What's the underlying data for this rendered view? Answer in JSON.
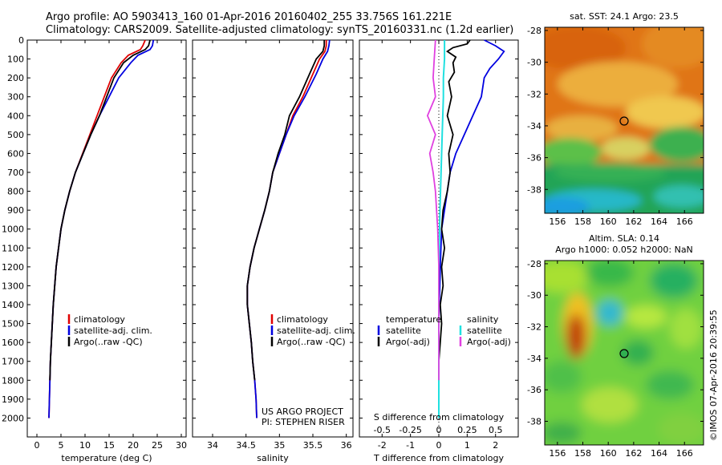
{
  "title": {
    "line1": "Argo profile: AO 5903413_160 01-Apr-2016 20160402_255 33.756S 161.221E",
    "line2": "Climatology: CARS2009. Satellite-adjusted climatology: synTS_20160331.nc (1.2d earlier)"
  },
  "colors": {
    "climatology": "#e00000",
    "satellite": "#0000e0",
    "argo": "#000000",
    "argo_salinity": "#e040e0",
    "satellite_salinity": "#20e0e0"
  },
  "panel_temp": {
    "xlabel": "temperature (deg C)",
    "legend": [
      "climatology",
      "satellite-adj. clim.",
      "Argo(..raw -QC)"
    ]
  },
  "panel_sal": {
    "xlabel": "salinity",
    "legend": [
      "climatology",
      "satellite-adj. clim.",
      "Argo(..raw -QC)"
    ],
    "credit1": "US ARGO PROJECT",
    "credit2": "PI: STEPHEN RISER"
  },
  "panel_diff": {
    "xlabel": "T difference from climatology",
    "xlabel_top": "S difference from climatology",
    "legend_t_head": "temperature",
    "legend_t": [
      "satellite",
      "Argo(-adj)"
    ],
    "legend_s_head": "salinity",
    "legend_s": [
      "satellite",
      "Argo(-adj)"
    ]
  },
  "map_sst": {
    "title": "sat. SST: 24.1  Argo: 23.5"
  },
  "map_sla": {
    "title1": "Altim. SLA: 0.14",
    "title2": "Argo h1000: 0.052 h2000: NaN"
  },
  "footer_vertical": "©IMOS 07-Apr-2016 20:39:55",
  "chart_data": [
    {
      "type": "line",
      "title": "",
      "xlabel": "temperature (deg C)",
      "ylabel": "",
      "xlim": [
        -2,
        31
      ],
      "ylim": [
        2100,
        0
      ],
      "xticks": [
        0,
        5,
        10,
        15,
        20,
        25,
        30
      ],
      "yticks": [
        0,
        100,
        200,
        300,
        400,
        500,
        600,
        700,
        800,
        900,
        1000,
        1100,
        1200,
        1300,
        1400,
        1500,
        1600,
        1700,
        1800,
        1900,
        2000
      ],
      "series": [
        {
          "name": "climatology",
          "points": [
            [
              22.5,
              0
            ],
            [
              22,
              30
            ],
            [
              21.5,
              50
            ],
            [
              19,
              80
            ],
            [
              17.5,
              120
            ],
            [
              15.5,
              200
            ],
            [
              14,
              300
            ],
            [
              12.5,
              400
            ],
            [
              11,
              500
            ],
            [
              9.5,
              600
            ],
            [
              8,
              700
            ],
            [
              6.8,
              800
            ],
            [
              5.8,
              900
            ],
            [
              5,
              1000
            ],
            [
              4.5,
              1100
            ],
            [
              4,
              1200
            ],
            [
              3.7,
              1300
            ],
            [
              3.4,
              1400
            ],
            [
              3.2,
              1500
            ],
            [
              3,
              1600
            ],
            [
              2.8,
              1700
            ],
            [
              2.7,
              1800
            ],
            [
              2.6,
              1900
            ],
            [
              2.5,
              2000
            ]
          ]
        },
        {
          "name": "satellite-adj. clim.",
          "points": [
            [
              24.2,
              0
            ],
            [
              24,
              30
            ],
            [
              23.5,
              50
            ],
            [
              21,
              80
            ],
            [
              19.5,
              120
            ],
            [
              17,
              200
            ],
            [
              15,
              300
            ],
            [
              13,
              400
            ],
            [
              11.2,
              500
            ],
            [
              9.6,
              600
            ],
            [
              8,
              700
            ],
            [
              6.8,
              800
            ],
            [
              5.8,
              900
            ],
            [
              5,
              1000
            ],
            [
              4.5,
              1100
            ],
            [
              4,
              1200
            ],
            [
              3.7,
              1300
            ],
            [
              3.4,
              1400
            ],
            [
              3.2,
              1500
            ],
            [
              3,
              1600
            ],
            [
              2.8,
              1700
            ],
            [
              2.7,
              1800
            ],
            [
              2.6,
              1900
            ],
            [
              2.5,
              2000
            ]
          ]
        },
        {
          "name": "Argo(..raw -QC)",
          "points": [
            [
              23.5,
              0
            ],
            [
              23.2,
              30
            ],
            [
              22.5,
              50
            ],
            [
              20,
              80
            ],
            [
              18,
              120
            ],
            [
              16,
              200
            ],
            [
              14.5,
              300
            ],
            [
              13,
              400
            ],
            [
              11.2,
              500
            ],
            [
              9.6,
              600
            ],
            [
              8,
              700
            ],
            [
              6.8,
              800
            ],
            [
              5.8,
              900
            ],
            [
              5,
              1000
            ],
            [
              4.5,
              1100
            ],
            [
              4,
              1200
            ],
            [
              3.7,
              1300
            ],
            [
              3.4,
              1400
            ],
            [
              3.2,
              1500
            ],
            [
              3,
              1600
            ],
            [
              2.8,
              1700
            ],
            [
              2.7,
              1800
            ]
          ]
        }
      ]
    },
    {
      "type": "line",
      "title": "",
      "xlabel": "salinity",
      "ylabel": "",
      "xlim": [
        33.7,
        36.1
      ],
      "ylim": [
        2100,
        0
      ],
      "xticks": [
        34,
        34.5,
        35,
        35.5,
        36
      ],
      "series": [
        {
          "name": "climatology",
          "points": [
            [
              35.7,
              0
            ],
            [
              35.7,
              30
            ],
            [
              35.68,
              60
            ],
            [
              35.6,
              100
            ],
            [
              35.5,
              180
            ],
            [
              35.35,
              300
            ],
            [
              35.2,
              400
            ],
            [
              35.1,
              500
            ],
            [
              35,
              600
            ],
            [
              34.9,
              700
            ],
            [
              34.85,
              800
            ],
            [
              34.78,
              900
            ],
            [
              34.7,
              1000
            ],
            [
              34.62,
              1100
            ],
            [
              34.56,
              1200
            ],
            [
              34.52,
              1300
            ],
            [
              34.52,
              1400
            ],
            [
              34.55,
              1500
            ],
            [
              34.58,
              1600
            ],
            [
              34.6,
              1700
            ],
            [
              34.63,
              1800
            ],
            [
              34.65,
              1900
            ],
            [
              34.66,
              2000
            ]
          ]
        },
        {
          "name": "satellite-adj. clim.",
          "points": [
            [
              35.75,
              0
            ],
            [
              35.74,
              30
            ],
            [
              35.72,
              60
            ],
            [
              35.65,
              100
            ],
            [
              35.55,
              180
            ],
            [
              35.38,
              300
            ],
            [
              35.22,
              400
            ],
            [
              35.1,
              500
            ],
            [
              35,
              600
            ],
            [
              34.9,
              700
            ],
            [
              34.85,
              800
            ],
            [
              34.78,
              900
            ],
            [
              34.7,
              1000
            ],
            [
              34.62,
              1100
            ],
            [
              34.56,
              1200
            ],
            [
              34.52,
              1300
            ],
            [
              34.52,
              1400
            ],
            [
              34.55,
              1500
            ],
            [
              34.58,
              1600
            ],
            [
              34.6,
              1700
            ],
            [
              34.63,
              1800
            ],
            [
              34.65,
              1900
            ],
            [
              34.66,
              2000
            ]
          ]
        },
        {
          "name": "Argo(..raw -QC)",
          "points": [
            [
              35.67,
              0
            ],
            [
              35.67,
              30
            ],
            [
              35.65,
              60
            ],
            [
              35.55,
              100
            ],
            [
              35.45,
              180
            ],
            [
              35.3,
              300
            ],
            [
              35.15,
              400
            ],
            [
              35.08,
              500
            ],
            [
              34.98,
              600
            ],
            [
              34.9,
              700
            ],
            [
              34.85,
              800
            ],
            [
              34.78,
              900
            ],
            [
              34.7,
              1000
            ],
            [
              34.62,
              1100
            ],
            [
              34.56,
              1200
            ],
            [
              34.52,
              1300
            ],
            [
              34.52,
              1400
            ],
            [
              34.55,
              1500
            ],
            [
              34.58,
              1600
            ],
            [
              34.6,
              1700
            ],
            [
              34.63,
              1800
            ]
          ]
        }
      ]
    },
    {
      "type": "line",
      "title": "",
      "xlabel": "T difference from climatology",
      "xlabel_top": "S difference from climatology",
      "ylabel": "",
      "xlim": [
        -2.8,
        2.8
      ],
      "ylim": [
        2100,
        0
      ],
      "xticks_T": [
        -2,
        -1,
        0,
        1,
        2
      ],
      "xticks_S": [
        -0.5,
        -0.25,
        0,
        0.25,
        0.5
      ],
      "series": [
        {
          "name": "satellite (temperature)",
          "points": [
            [
              1.6,
              0
            ],
            [
              2,
              30
            ],
            [
              2.3,
              60
            ],
            [
              2.1,
              100
            ],
            [
              1.8,
              150
            ],
            [
              1.6,
              200
            ],
            [
              1.5,
              300
            ],
            [
              1.2,
              400
            ],
            [
              0.9,
              500
            ],
            [
              0.6,
              600
            ],
            [
              0.4,
              700
            ],
            [
              0.3,
              800
            ],
            [
              0.2,
              900
            ],
            [
              0.1,
              1000
            ],
            [
              0.05,
              1200
            ],
            [
              0,
              1500
            ],
            [
              0,
              1800
            ],
            [
              0,
              2000
            ]
          ]
        },
        {
          "name": "Argo(-adj) (temperature)",
          "points": [
            [
              1.1,
              0
            ],
            [
              1,
              20
            ],
            [
              0.5,
              40
            ],
            [
              0.3,
              60
            ],
            [
              0.6,
              90
            ],
            [
              0.5,
              120
            ],
            [
              0.55,
              170
            ],
            [
              0.35,
              220
            ],
            [
              0.45,
              300
            ],
            [
              0.3,
              400
            ],
            [
              0.5,
              500
            ],
            [
              0.35,
              600
            ],
            [
              0.4,
              700
            ],
            [
              0.3,
              800
            ],
            [
              0.15,
              900
            ],
            [
              0.1,
              1000
            ],
            [
              0.2,
              1100
            ],
            [
              0.1,
              1200
            ],
            [
              0.15,
              1300
            ],
            [
              0.05,
              1400
            ],
            [
              0.1,
              1500
            ],
            [
              0.05,
              1600
            ],
            [
              0,
              1700
            ],
            [
              0,
              1800
            ]
          ]
        },
        {
          "name": "satellite (salinity)",
          "points": [
            [
              0.05,
              0
            ],
            [
              0.05,
              100
            ],
            [
              0.04,
              200
            ],
            [
              0.04,
              300
            ],
            [
              0.03,
              500
            ],
            [
              0.02,
              700
            ],
            [
              0.01,
              900
            ],
            [
              0,
              1200
            ],
            [
              0,
              1500
            ],
            [
              0,
              1800
            ],
            [
              0,
              2000
            ]
          ]
        },
        {
          "name": "Argo(-adj) (salinity)",
          "points": [
            [
              -0.03,
              0
            ],
            [
              -0.04,
              100
            ],
            [
              -0.05,
              200
            ],
            [
              -0.03,
              300
            ],
            [
              -0.1,
              400
            ],
            [
              -0.03,
              500
            ],
            [
              -0.08,
              600
            ],
            [
              -0.05,
              700
            ],
            [
              -0.03,
              800
            ],
            [
              -0.02,
              900
            ],
            [
              -0.01,
              1000
            ],
            [
              0,
              1200
            ],
            [
              0,
              1500
            ],
            [
              0,
              1800
            ]
          ]
        }
      ]
    },
    {
      "type": "heatmap",
      "title": "sat. SST: 24.1  Argo: 23.5",
      "xlim": [
        155,
        167.5
      ],
      "ylim": [
        -39.5,
        -27.8
      ],
      "xticks": [
        156,
        158,
        160,
        162,
        164,
        166
      ],
      "yticks": [
        -28,
        -30,
        -32,
        -34,
        -36,
        -38
      ],
      "marker": [
        161.2,
        -33.8
      ]
    },
    {
      "type": "heatmap",
      "title": "Altim. SLA: 0.14 / Argo h1000: 0.052 h2000: NaN",
      "xlim": [
        155,
        167.5
      ],
      "ylim": [
        -39.5,
        -27.8
      ],
      "xticks": [
        156,
        158,
        160,
        162,
        164,
        166
      ],
      "yticks": [
        -28,
        -30,
        -32,
        -34,
        -36,
        -38
      ],
      "marker": [
        161.2,
        -33.8
      ]
    }
  ]
}
